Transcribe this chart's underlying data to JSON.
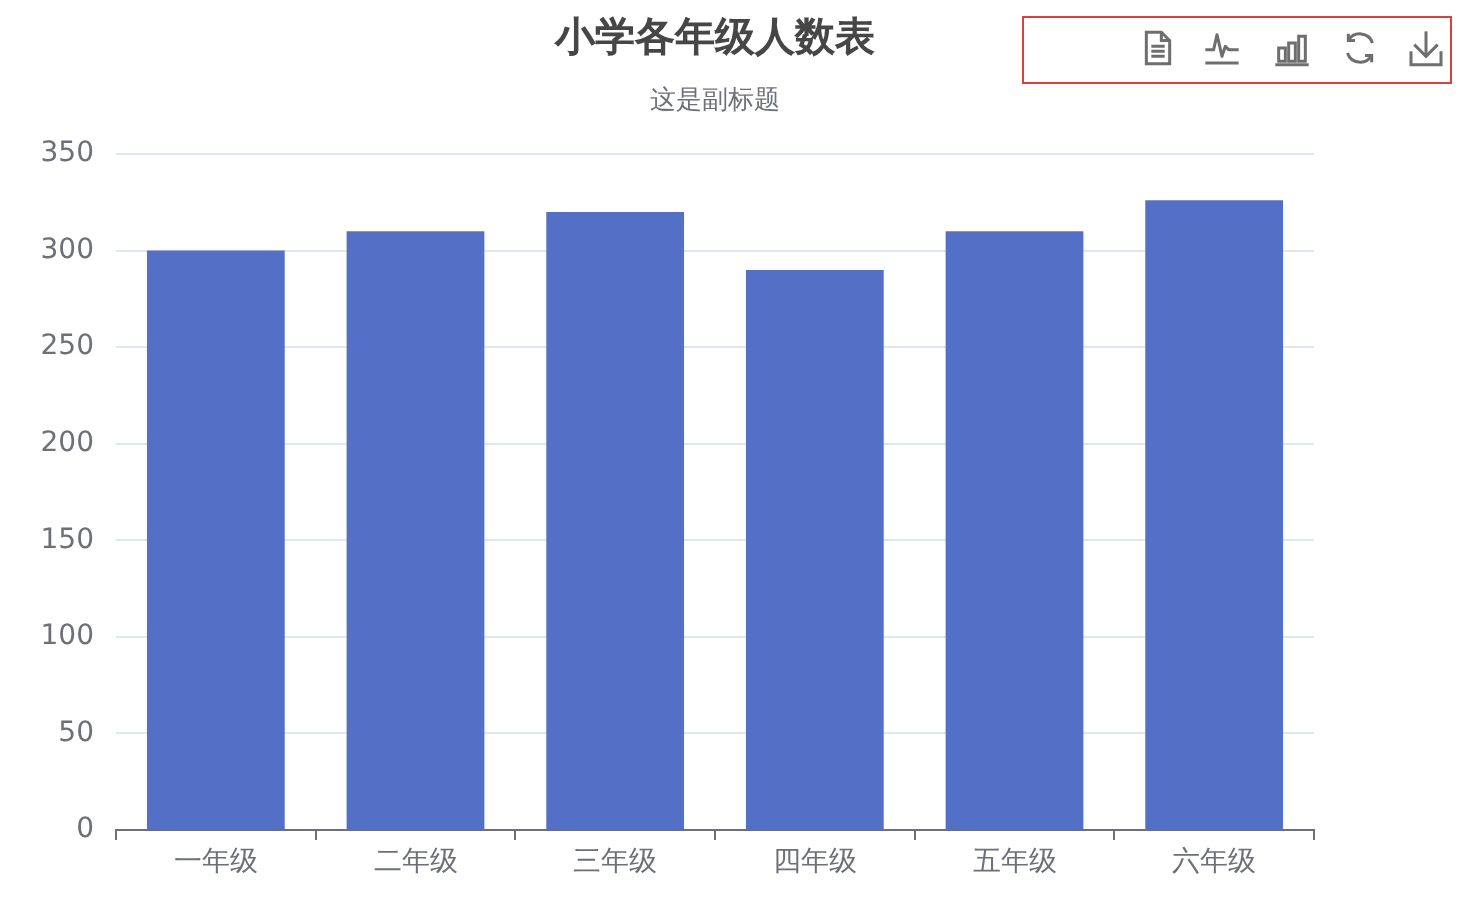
{
  "chart_data": {
    "type": "bar",
    "title": "小学各年级人数表",
    "subtitle": "这是副标题",
    "categories": [
      "一年级",
      "二年级",
      "三年级",
      "四年级",
      "五年级",
      "六年级"
    ],
    "values": [
      300,
      310,
      320,
      290,
      310,
      326
    ],
    "color": "#5470c6",
    "ylim": [
      0,
      350
    ],
    "yticks": [
      0,
      50,
      100,
      150,
      200,
      250,
      300,
      350
    ],
    "grid": "y"
  }
}
